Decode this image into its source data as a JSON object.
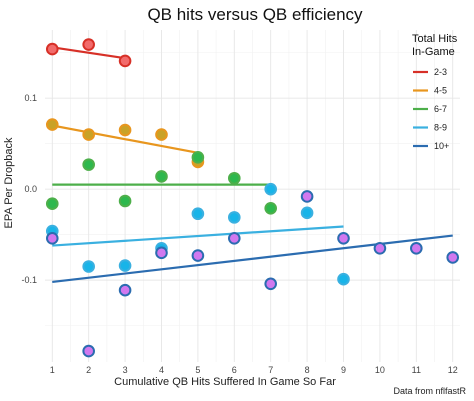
{
  "chart_data": {
    "type": "scatter",
    "title": "QB hits versus QB efficiency",
    "xlabel": "Cumulative QB Hits Suffered In Game So Far",
    "ylabel": "EPA Per Dropback",
    "caption": "Data from nflfastR",
    "xlim": [
      0.8,
      12.2
    ],
    "ylim": [
      -0.19,
      0.175
    ],
    "x_ticks": [
      1,
      2,
      3,
      4,
      5,
      6,
      7,
      8,
      9,
      10,
      11,
      12
    ],
    "y_ticks": [
      0.1,
      0.0,
      -0.1
    ],
    "y_tick_labels": [
      "0.1",
      "0.0",
      "-0.1"
    ],
    "grid": true,
    "legend": {
      "title": "Total Hits\nIn-Game",
      "placement": "top-right"
    },
    "series": [
      {
        "name": "2-3",
        "color": "#d73027",
        "fill": "#f26b6b",
        "points": [
          {
            "x": 1,
            "y": 0.154
          },
          {
            "x": 2,
            "y": 0.159
          },
          {
            "x": 3,
            "y": 0.141
          }
        ],
        "trend": [
          {
            "x": 1,
            "y": 0.156
          },
          {
            "x": 3,
            "y": 0.144
          }
        ]
      },
      {
        "name": "4-5",
        "color": "#e8961e",
        "fill": "#c9a227",
        "points": [
          {
            "x": 1,
            "y": 0.071
          },
          {
            "x": 2,
            "y": 0.06
          },
          {
            "x": 3,
            "y": 0.065
          },
          {
            "x": 4,
            "y": 0.06
          },
          {
            "x": 5,
            "y": 0.03
          }
        ],
        "trend": [
          {
            "x": 1,
            "y": 0.07
          },
          {
            "x": 5,
            "y": 0.04
          }
        ]
      },
      {
        "name": "6-7",
        "color": "#4daf4a",
        "fill": "#2db84d",
        "points": [
          {
            "x": 1,
            "y": -0.016
          },
          {
            "x": 2,
            "y": 0.027
          },
          {
            "x": 3,
            "y": -0.013
          },
          {
            "x": 4,
            "y": 0.014
          },
          {
            "x": 5,
            "y": 0.035
          },
          {
            "x": 6,
            "y": 0.012
          },
          {
            "x": 7,
            "y": -0.021
          }
        ],
        "trend": [
          {
            "x": 1,
            "y": 0.005
          },
          {
            "x": 7,
            "y": 0.005
          }
        ]
      },
      {
        "name": "8-9",
        "color": "#3ab0e0",
        "fill": "#18b4e8",
        "points": [
          {
            "x": 1,
            "y": -0.046
          },
          {
            "x": 2,
            "y": -0.085
          },
          {
            "x": 3,
            "y": -0.084
          },
          {
            "x": 4,
            "y": -0.065
          },
          {
            "x": 5,
            "y": -0.027
          },
          {
            "x": 6,
            "y": -0.031
          },
          {
            "x": 7,
            "y": 0.0
          },
          {
            "x": 8,
            "y": -0.026
          },
          {
            "x": 9,
            "y": -0.099
          }
        ],
        "trend": [
          {
            "x": 1,
            "y": -0.062
          },
          {
            "x": 9,
            "y": -0.041
          }
        ]
      },
      {
        "name": "10+",
        "color": "#2b6cb0",
        "fill": "#d178ef",
        "points": [
          {
            "x": 1,
            "y": -0.054
          },
          {
            "x": 2,
            "y": -0.178
          },
          {
            "x": 3,
            "y": -0.111
          },
          {
            "x": 4,
            "y": -0.07
          },
          {
            "x": 5,
            "y": -0.073
          },
          {
            "x": 6,
            "y": -0.054
          },
          {
            "x": 7,
            "y": -0.104
          },
          {
            "x": 8,
            "y": -0.008
          },
          {
            "x": 9,
            "y": -0.054
          },
          {
            "x": 10,
            "y": -0.065
          },
          {
            "x": 11,
            "y": -0.065
          },
          {
            "x": 12,
            "y": -0.075
          }
        ],
        "trend": [
          {
            "x": 1,
            "y": -0.102
          },
          {
            "x": 12,
            "y": -0.051
          }
        ]
      }
    ]
  }
}
